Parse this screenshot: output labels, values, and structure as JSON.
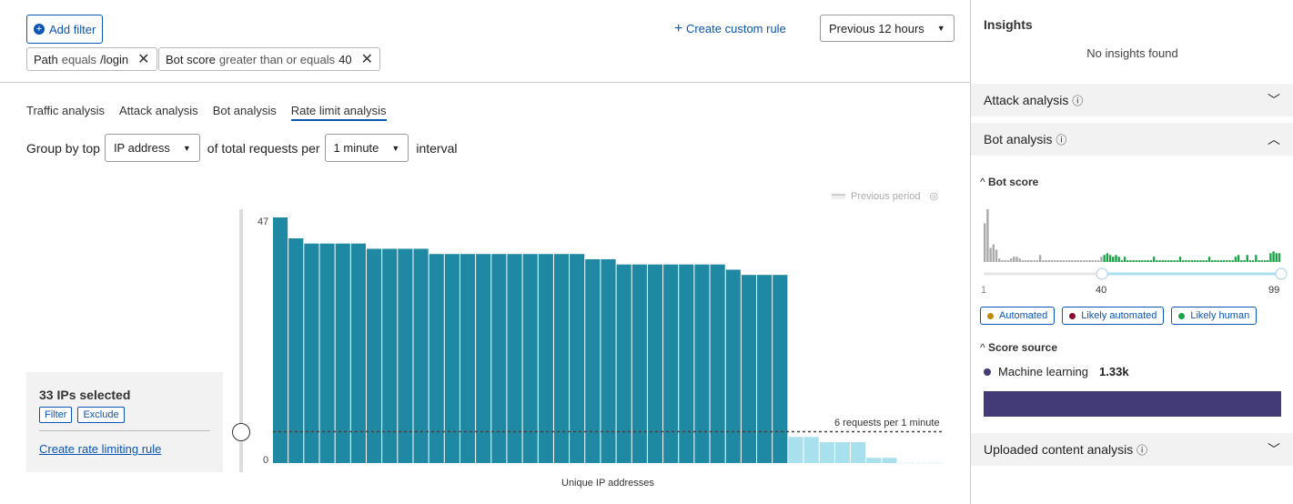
{
  "toolbar": {
    "add_filter": "Add filter",
    "create_custom_rule": "Create custom rule",
    "time_range": "Previous 12 hours"
  },
  "filters": [
    {
      "field": "Path",
      "operator": "equals",
      "value": "/login"
    },
    {
      "field": "Bot score",
      "operator": "greater than or equals",
      "value": "40"
    }
  ],
  "tabs": [
    {
      "label": "Traffic analysis"
    },
    {
      "label": "Attack analysis"
    },
    {
      "label": "Bot analysis"
    },
    {
      "label": "Rate limit analysis",
      "active": true
    }
  ],
  "group_by": {
    "prefix": "Group by top",
    "field": "IP address",
    "middle": "of total requests per",
    "interval": "1 minute",
    "suffix": "interval"
  },
  "selection": {
    "title": "33 IPs selected",
    "filter": "Filter",
    "exclude": "Exclude",
    "create_rule": "Create rate limiting rule"
  },
  "chart_data": {
    "type": "bar",
    "xlabel": "Unique IP addresses",
    "ylabel": "",
    "ylim": [
      0,
      47
    ],
    "y_ticks": [
      "0",
      "47"
    ],
    "legend": "Previous period",
    "threshold": {
      "value": 6,
      "label": "6 requests per 1 minute"
    },
    "colors": {
      "selected": "#1f88a3",
      "unselected": "#a9e0ee"
    },
    "values": [
      47,
      43,
      42,
      42,
      42,
      42,
      41,
      41,
      41,
      41,
      40,
      40,
      40,
      40,
      40,
      40,
      40,
      40,
      40,
      40,
      39,
      39,
      38,
      38,
      38,
      38,
      38,
      38,
      38,
      37,
      36,
      36,
      36,
      5,
      5,
      4,
      4,
      4,
      1,
      1,
      0,
      0,
      0
    ],
    "selected_count": 33
  },
  "insights": {
    "title": "Insights",
    "empty": "No insights found",
    "attack": "Attack analysis",
    "bot": "Bot analysis",
    "uploaded": "Uploaded content analysis",
    "bot_score": {
      "title": "Bot score",
      "min": "1",
      "selected": "40",
      "max": "99",
      "histogram": [
        22,
        30,
        8,
        10,
        7,
        2,
        1,
        1,
        1,
        2,
        3,
        3,
        2,
        1,
        1,
        1,
        1,
        1,
        1,
        4,
        1,
        1,
        1,
        1,
        1,
        1,
        1,
        1,
        1,
        1,
        1,
        1,
        1,
        1,
        1,
        1,
        1,
        1,
        1,
        1,
        3,
        4,
        5,
        4,
        3,
        4,
        3,
        1,
        3,
        1,
        1,
        1,
        1,
        1,
        1,
        1,
        1,
        1,
        3,
        1,
        1,
        1,
        1,
        1,
        1,
        1,
        1,
        3,
        1,
        1,
        1,
        1,
        1,
        1,
        1,
        1,
        1,
        3,
        1,
        1,
        1,
        1,
        1,
        1,
        1,
        1,
        3,
        4,
        1,
        1,
        4,
        1,
        1,
        4,
        1,
        1,
        1,
        1,
        5,
        6,
        5,
        5
      ],
      "legend": [
        {
          "label": "Automated",
          "color": "#c28a00"
        },
        {
          "label": "Likely automated",
          "color": "#8a0b2e"
        },
        {
          "label": "Likely human",
          "color": "#1fa34a"
        }
      ]
    },
    "score_source": {
      "title": "Score source",
      "label": "Machine learning",
      "value": "1.33k",
      "color": "#433a78"
    }
  }
}
